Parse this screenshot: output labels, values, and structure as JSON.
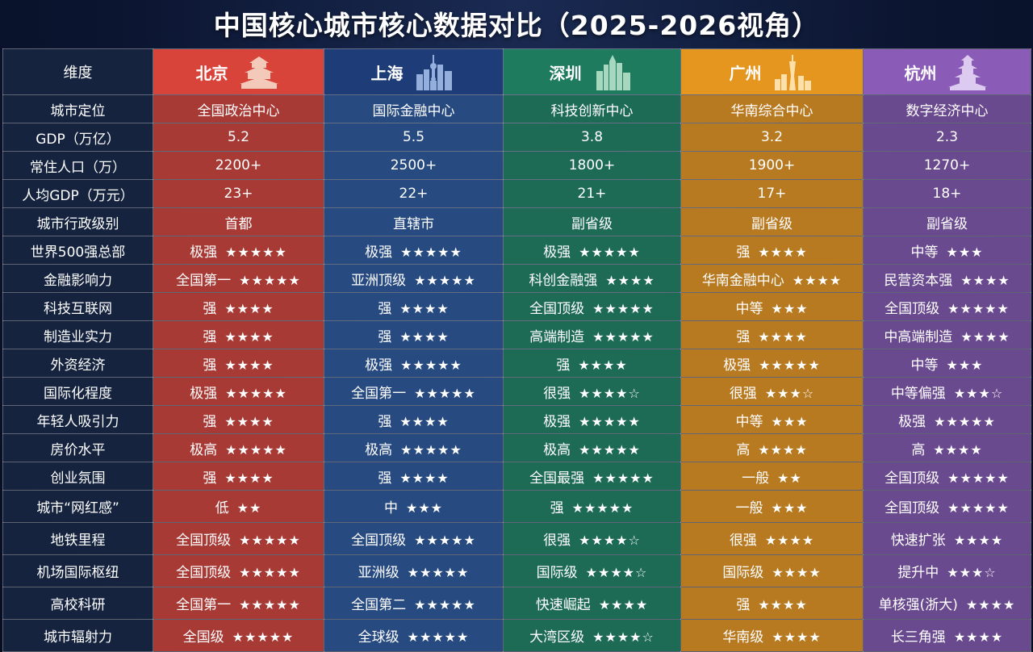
{
  "title": "中国核心城市核心数据对比（2025-2026视角）",
  "header": {
    "dim_label": "维度",
    "cities": [
      {
        "name": "北京",
        "icon": "temple-icon",
        "color": "#d8433a"
      },
      {
        "name": "上海",
        "icon": "skyline-icon",
        "color": "#1e3d78"
      },
      {
        "name": "深圳",
        "icon": "skyscrapers-icon",
        "color": "#1e7b5d"
      },
      {
        "name": "广州",
        "icon": "canton-tower-icon",
        "color": "#e4961f"
      },
      {
        "name": "杭州",
        "icon": "pagoda-icon",
        "color": "#8a5cb7"
      }
    ]
  },
  "rows": [
    {
      "dim": "城市定位",
      "cells": [
        {
          "v": "全国政治中心",
          "s": ""
        },
        {
          "v": "国际金融中心",
          "s": ""
        },
        {
          "v": "科技创新中心",
          "s": ""
        },
        {
          "v": "华南综合中心",
          "s": ""
        },
        {
          "v": "数字经济中心",
          "s": ""
        }
      ]
    },
    {
      "dim": "GDP（万亿）",
      "cells": [
        {
          "v": "5.2",
          "s": ""
        },
        {
          "v": "5.5",
          "s": ""
        },
        {
          "v": "3.8",
          "s": ""
        },
        {
          "v": "3.2",
          "s": ""
        },
        {
          "v": "2.3",
          "s": ""
        }
      ]
    },
    {
      "dim": "常住人口（万）",
      "cells": [
        {
          "v": "2200+",
          "s": ""
        },
        {
          "v": "2500+",
          "s": ""
        },
        {
          "v": "1800+",
          "s": ""
        },
        {
          "v": "1900+",
          "s": ""
        },
        {
          "v": "1270+",
          "s": ""
        }
      ]
    },
    {
      "dim": "人均GDP（万元）",
      "cells": [
        {
          "v": "23+",
          "s": ""
        },
        {
          "v": "22+",
          "s": ""
        },
        {
          "v": "21+",
          "s": ""
        },
        {
          "v": "17+",
          "s": ""
        },
        {
          "v": "18+",
          "s": ""
        }
      ]
    },
    {
      "dim": "城市行政级别",
      "cells": [
        {
          "v": "首都",
          "s": ""
        },
        {
          "v": "直辖市",
          "s": ""
        },
        {
          "v": "副省级",
          "s": ""
        },
        {
          "v": "副省级",
          "s": ""
        },
        {
          "v": "副省级",
          "s": ""
        }
      ]
    },
    {
      "dim": "世界500强总部",
      "cells": [
        {
          "v": "极强",
          "s": "★★★★★"
        },
        {
          "v": "极强",
          "s": "★★★★★"
        },
        {
          "v": "极强",
          "s": "★★★★★"
        },
        {
          "v": "强",
          "s": "★★★★"
        },
        {
          "v": "中等",
          "s": "★★★"
        }
      ]
    },
    {
      "dim": "金融影响力",
      "cells": [
        {
          "v": "全国第一",
          "s": "★★★★★"
        },
        {
          "v": "亚洲顶级",
          "s": "★★★★★"
        },
        {
          "v": "科创金融强",
          "s": "★★★★"
        },
        {
          "v": "华南金融中心",
          "s": "★★★★"
        },
        {
          "v": "民营资本强",
          "s": "★★★★"
        }
      ]
    },
    {
      "dim": "科技互联网",
      "cells": [
        {
          "v": "强",
          "s": "★★★★"
        },
        {
          "v": "强",
          "s": "★★★★"
        },
        {
          "v": "全国顶级",
          "s": "★★★★★"
        },
        {
          "v": "中等",
          "s": "★★★"
        },
        {
          "v": "全国顶级",
          "s": "★★★★★"
        }
      ]
    },
    {
      "dim": "制造业实力",
      "cells": [
        {
          "v": "强",
          "s": "★★★★"
        },
        {
          "v": "强",
          "s": "★★★★"
        },
        {
          "v": "高端制造",
          "s": "★★★★★"
        },
        {
          "v": "强",
          "s": "★★★★"
        },
        {
          "v": "中高端制造",
          "s": "★★★★"
        }
      ]
    },
    {
      "dim": "外资经济",
      "cells": [
        {
          "v": "强",
          "s": "★★★★"
        },
        {
          "v": "极强",
          "s": "★★★★★"
        },
        {
          "v": "强",
          "s": "★★★★"
        },
        {
          "v": "极强",
          "s": "★★★★★"
        },
        {
          "v": "中等",
          "s": "★★★"
        }
      ]
    },
    {
      "dim": "国际化程度",
      "cells": [
        {
          "v": "极强",
          "s": "★★★★★"
        },
        {
          "v": "全国第一",
          "s": "★★★★★"
        },
        {
          "v": "很强",
          "s": "★★★★☆"
        },
        {
          "v": "很强",
          "s": "★★★☆"
        },
        {
          "v": "中等偏强",
          "s": "★★★☆"
        }
      ]
    },
    {
      "dim": "年轻人吸引力",
      "cells": [
        {
          "v": "强",
          "s": "★★★★"
        },
        {
          "v": "强",
          "s": "★★★★"
        },
        {
          "v": "极强",
          "s": "★★★★★"
        },
        {
          "v": "中等",
          "s": "★★★"
        },
        {
          "v": "极强",
          "s": "★★★★★"
        }
      ]
    },
    {
      "dim": "房价水平",
      "cells": [
        {
          "v": "极高",
          "s": "★★★★★"
        },
        {
          "v": "极高",
          "s": "★★★★★"
        },
        {
          "v": "极高",
          "s": "★★★★★"
        },
        {
          "v": "高",
          "s": "★★★★"
        },
        {
          "v": "高",
          "s": "★★★★"
        }
      ]
    },
    {
      "dim": "创业氛围",
      "cells": [
        {
          "v": "强",
          "s": "★★★★"
        },
        {
          "v": "强",
          "s": "★★★★"
        },
        {
          "v": "全国最强",
          "s": "★★★★★"
        },
        {
          "v": "一般",
          "s": "★★"
        },
        {
          "v": "全国顶级",
          "s": "★★★★★"
        }
      ]
    },
    {
      "dim": "城市“网红感”",
      "cells": [
        {
          "v": "低",
          "s": "★★"
        },
        {
          "v": "中",
          "s": "★★★"
        },
        {
          "v": "强",
          "s": "★★★★★"
        },
        {
          "v": "一般",
          "s": "★★★"
        },
        {
          "v": "全国顶级",
          "s": "★★★★★"
        }
      ]
    },
    {
      "dim": "地铁里程",
      "cells": [
        {
          "v": "全国顶级",
          "s": "★★★★★"
        },
        {
          "v": "全国顶级",
          "s": "★★★★★"
        },
        {
          "v": "很强",
          "s": "★★★★☆"
        },
        {
          "v": "很强",
          "s": "★★★★"
        },
        {
          "v": "快速扩张",
          "s": "★★★★"
        }
      ]
    },
    {
      "dim": "机场国际枢纽",
      "cells": [
        {
          "v": "全国顶级",
          "s": "★★★★★"
        },
        {
          "v": "亚洲级",
          "s": "★★★★★"
        },
        {
          "v": "国际级",
          "s": "★★★★☆"
        },
        {
          "v": "国际级",
          "s": "★★★★"
        },
        {
          "v": "提升中",
          "s": "★★★☆"
        }
      ]
    },
    {
      "dim": "高校科研",
      "cells": [
        {
          "v": "全国第一",
          "s": "★★★★★"
        },
        {
          "v": "全国第二",
          "s": "★★★★★"
        },
        {
          "v": "快速崛起",
          "s": "★★★★"
        },
        {
          "v": "强",
          "s": "★★★★"
        },
        {
          "v": "单核强(浙大)",
          "s": "★★★★"
        }
      ]
    },
    {
      "dim": "城市辐射力",
      "cells": [
        {
          "v": "全国级",
          "s": "★★★★★"
        },
        {
          "v": "全球级",
          "s": "★★★★★"
        },
        {
          "v": "大湾区级",
          "s": "★★★★☆"
        },
        {
          "v": "华南级",
          "s": "★★★★"
        },
        {
          "v": "长三角强",
          "s": "★★★★"
        }
      ]
    }
  ]
}
